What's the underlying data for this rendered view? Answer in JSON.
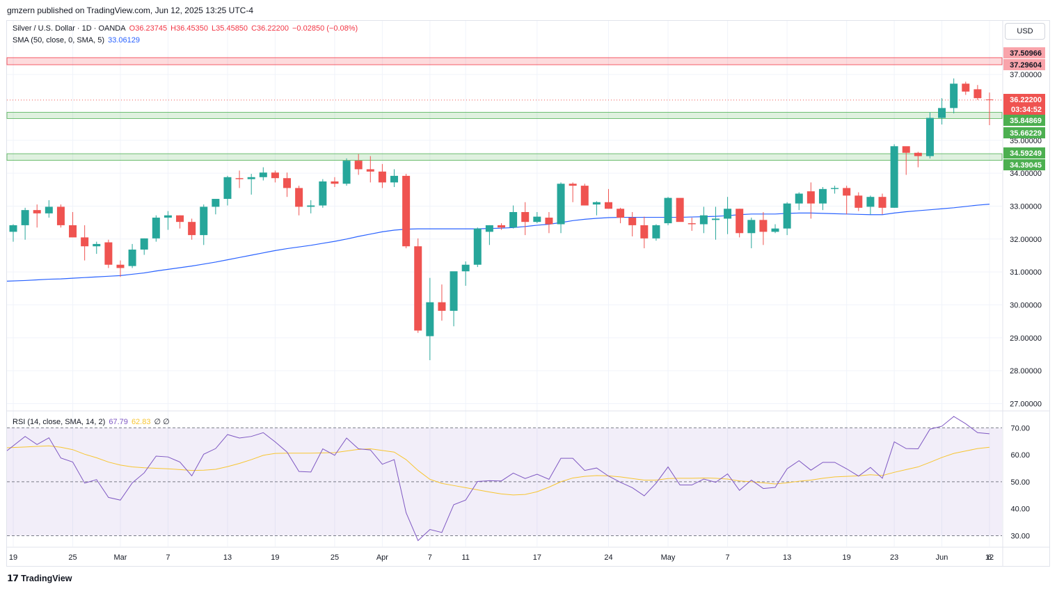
{
  "header": {
    "text": "gmzern published on TradingView.com, Jun 12, 2025 13:25 UTC-4"
  },
  "legend": {
    "symbol": "Silver / U.S. Dollar · 1D · OANDA",
    "open": "O36.23745",
    "high": "H36.45350",
    "low": "L35.45850",
    "close": "C36.22200",
    "change": "−0.02850 (−0.08%)",
    "sma_label": "SMA (50, close, 0, SMA, 5)",
    "sma_value": "33.06129",
    "rsi_label": "RSI (14, close, SMA, 14, 2)",
    "rsi_value": "67.79",
    "rsi_sma_value": "62.83",
    "rsi_extra": "∅ ∅"
  },
  "currency": "USD",
  "footer": {
    "brand": "TradingView"
  },
  "colors": {
    "up": "#26a69a",
    "down": "#ef5350",
    "sma": "#2962ff",
    "rsi": "#7e57c2",
    "rsi_sma": "#f7c531",
    "zone_red": "#f23645",
    "zone_green": "#4caf50"
  },
  "chart_data": [
    {
      "type": "candlestick",
      "title": "Silver / U.S. Dollar · 1D · OANDA",
      "ylim": [
        26.8,
        38.1
      ],
      "y_ticks": [
        "37.00000",
        "35.00000",
        "34.00000",
        "33.00000",
        "32.00000",
        "31.00000",
        "30.00000",
        "29.00000",
        "28.00000",
        "27.00000"
      ],
      "x_labels": [
        "19",
        "25",
        "Mar",
        "7",
        "13",
        "19",
        "25",
        "Apr",
        "7",
        "11",
        "17",
        "24",
        "May",
        "7",
        "13",
        "19",
        "23",
        "Jun",
        "6",
        "12"
      ],
      "price_labels": [
        {
          "text": "37.50966",
          "kind": "red"
        },
        {
          "text": "37.29604",
          "kind": "red"
        },
        {
          "text": "36.22200",
          "kind": "last"
        },
        {
          "text": "03:34:52",
          "kind": "last"
        },
        {
          "text": "35.84869",
          "kind": "green"
        },
        {
          "text": "35.66229",
          "kind": "green"
        },
        {
          "text": "34.59249",
          "kind": "green"
        },
        {
          "text": "34.39045",
          "kind": "green"
        }
      ],
      "zones": [
        {
          "color": "red",
          "from": 37.29604,
          "to": 37.50966
        },
        {
          "color": "green",
          "from": 35.66229,
          "to": 35.84869
        },
        {
          "color": "green",
          "from": 34.39045,
          "to": 34.59249
        }
      ],
      "last_price": 36.222,
      "candles": [
        [
          32.22,
          32.45,
          31.92,
          32.42
        ],
        [
          32.42,
          32.95,
          31.98,
          32.88
        ],
        [
          32.88,
          33.05,
          32.35,
          32.78
        ],
        [
          32.78,
          33.18,
          32.65,
          32.98
        ],
        [
          32.98,
          33.05,
          32.35,
          32.42
        ],
        [
          32.42,
          32.82,
          32.08,
          32.05
        ],
        [
          32.05,
          32.42,
          31.35,
          31.78
        ],
        [
          31.78,
          31.92,
          31.55,
          31.85
        ],
        [
          31.9,
          31.98,
          31.12,
          31.22
        ],
        [
          31.22,
          31.35,
          30.85,
          31.12
        ],
        [
          31.18,
          31.85,
          31.12,
          31.68
        ],
        [
          31.68,
          32.02,
          31.52,
          32.02
        ],
        [
          32.02,
          32.72,
          31.92,
          32.65
        ],
        [
          32.65,
          32.85,
          32.28,
          32.72
        ],
        [
          32.72,
          32.72,
          32.32,
          32.52
        ],
        [
          32.52,
          32.62,
          31.98,
          32.12
        ],
        [
          32.12,
          33.05,
          31.82,
          32.98
        ],
        [
          32.98,
          33.18,
          32.75,
          33.22
        ],
        [
          33.22,
          33.92,
          33.02,
          33.88
        ],
        [
          33.85,
          34.08,
          33.55,
          33.82
        ],
        [
          33.82,
          33.98,
          33.35,
          33.88
        ],
        [
          33.88,
          34.18,
          33.78,
          34.02
        ],
        [
          34.02,
          34.08,
          33.72,
          33.85
        ],
        [
          33.85,
          34.02,
          33.28,
          33.55
        ],
        [
          33.55,
          33.62,
          32.72,
          32.98
        ],
        [
          32.98,
          33.18,
          32.78,
          33.02
        ],
        [
          33.02,
          33.82,
          32.95,
          33.75
        ],
        [
          33.75,
          33.88,
          33.58,
          33.68
        ],
        [
          33.68,
          34.45,
          33.62,
          34.38
        ],
        [
          34.38,
          34.58,
          33.95,
          34.12
        ],
        [
          34.12,
          34.52,
          33.72,
          34.05
        ],
        [
          34.05,
          34.28,
          33.55,
          33.72
        ],
        [
          33.72,
          34.12,
          33.58,
          33.92
        ],
        [
          33.92,
          33.98,
          31.72,
          31.78
        ],
        [
          31.78,
          32.02,
          29.15,
          29.22
        ],
        [
          29.05,
          30.82,
          28.32,
          30.08
        ],
        [
          30.08,
          30.62,
          29.52,
          29.82
        ],
        [
          29.82,
          30.98,
          29.35,
          31.02
        ],
        [
          31.02,
          31.32,
          30.58,
          31.22
        ],
        [
          31.22,
          32.35,
          31.15,
          32.32
        ],
        [
          32.22,
          32.42,
          31.82,
          32.42
        ],
        [
          32.42,
          32.48,
          32.28,
          32.35
        ],
        [
          32.35,
          33.02,
          32.32,
          32.82
        ],
        [
          32.82,
          33.12,
          32.12,
          32.52
        ],
        [
          32.52,
          32.82,
          32.48,
          32.68
        ],
        [
          32.65,
          32.82,
          32.18,
          32.45
        ],
        [
          32.45,
          33.72,
          32.18,
          33.68
        ],
        [
          33.68,
          33.72,
          33.12,
          33.62
        ],
        [
          33.62,
          33.68,
          33.12,
          33.02
        ],
        [
          33.05,
          33.15,
          32.72,
          33.12
        ],
        [
          33.12,
          33.52,
          32.92,
          32.92
        ],
        [
          32.92,
          32.95,
          32.48,
          32.65
        ],
        [
          32.65,
          32.82,
          32.08,
          32.42
        ],
        [
          32.42,
          32.68,
          31.72,
          32.02
        ],
        [
          32.02,
          32.45,
          31.95,
          32.42
        ],
        [
          32.48,
          33.28,
          32.42,
          33.25
        ],
        [
          33.25,
          33.22,
          32.55,
          32.52
        ],
        [
          32.48,
          32.65,
          32.25,
          32.45
        ],
        [
          32.45,
          32.98,
          32.18,
          32.72
        ],
        [
          32.58,
          32.98,
          31.98,
          32.62
        ],
        [
          32.62,
          33.28,
          32.15,
          32.92
        ],
        [
          32.92,
          32.92,
          32.05,
          32.18
        ],
        [
          32.18,
          32.65,
          31.72,
          32.58
        ],
        [
          32.58,
          32.82,
          31.82,
          32.22
        ],
        [
          32.22,
          32.45,
          32.18,
          32.32
        ],
        [
          32.32,
          33.12,
          32.12,
          33.08
        ],
        [
          33.08,
          33.42,
          32.88,
          33.38
        ],
        [
          33.45,
          33.72,
          32.62,
          33.08
        ],
        [
          33.08,
          33.58,
          32.88,
          33.52
        ],
        [
          33.52,
          33.62,
          33.38,
          33.55
        ],
        [
          33.55,
          33.62,
          32.75,
          33.32
        ],
        [
          33.32,
          33.42,
          32.85,
          32.95
        ],
        [
          32.98,
          33.32,
          32.75,
          33.28
        ],
        [
          33.28,
          33.38,
          32.75,
          32.95
        ],
        [
          32.95,
          34.88,
          32.95,
          34.82
        ],
        [
          34.82,
          34.78,
          33.95,
          34.62
        ],
        [
          34.62,
          34.65,
          34.18,
          34.52
        ],
        [
          34.52,
          35.85,
          34.45,
          35.68
        ],
        [
          35.68,
          36.28,
          35.48,
          35.98
        ],
        [
          35.98,
          36.88,
          35.82,
          36.72
        ],
        [
          36.72,
          36.78,
          36.38,
          36.48
        ],
        [
          36.55,
          36.68,
          36.22,
          36.28
        ],
        [
          36.24,
          36.45,
          35.46,
          36.22
        ]
      ],
      "sma": [
        30.72,
        30.74,
        30.76,
        30.78,
        30.79,
        30.81,
        30.83,
        30.85,
        30.87,
        30.89,
        30.93,
        30.97,
        31.03,
        31.08,
        31.13,
        31.18,
        31.24,
        31.3,
        31.37,
        31.44,
        31.51,
        31.58,
        31.65,
        31.71,
        31.76,
        31.81,
        31.87,
        31.93,
        32.0,
        32.08,
        32.15,
        32.22,
        32.27,
        32.3,
        32.31,
        32.31,
        32.31,
        32.31,
        32.31,
        32.31,
        32.32,
        32.33,
        32.35,
        32.38,
        32.42,
        32.45,
        32.5,
        32.56,
        32.6,
        32.63,
        32.65,
        32.66,
        32.66,
        32.66,
        32.66,
        32.66,
        32.66,
        32.67,
        32.68,
        32.69,
        32.71,
        32.74,
        32.76,
        32.76,
        32.76,
        32.78,
        32.79,
        32.79,
        32.78,
        32.77,
        32.76,
        32.75,
        32.74,
        32.74,
        32.79,
        32.83,
        32.86,
        32.89,
        32.92,
        32.95,
        32.99,
        33.03,
        33.06
      ]
    },
    {
      "type": "line",
      "title": "RSI (14, close, SMA, 14, 2)",
      "ylim": [
        26,
        76
      ],
      "y_ticks": [
        "70.00",
        "60.00",
        "50.00",
        "40.00",
        "30.00"
      ],
      "band": [
        30,
        70
      ],
      "midline": 50,
      "rsi": [
        61.5,
        66.8,
        63.8,
        66.3,
        58.8,
        57.3,
        49.5,
        50.8,
        44.2,
        43.2,
        49.6,
        53.3,
        59.5,
        59.2,
        57.3,
        52.2,
        60.2,
        62.3,
        67.5,
        66.2,
        66.8,
        68.2,
        64.8,
        61.0,
        53.8,
        53.6,
        62.2,
        59.8,
        66.2,
        62.2,
        61.8,
        56.5,
        58.2,
        38.5,
        28.2,
        32.3,
        31.2,
        41.5,
        43.2,
        50.1,
        50.4,
        50.3,
        53.2,
        51.2,
        52.8,
        50.9,
        58.7,
        58.7,
        54.2,
        55.1,
        52.1,
        49.8,
        47.8,
        44.8,
        49.5,
        55.5,
        48.8,
        48.8,
        51.0,
        49.8,
        52.9,
        46.8,
        50.6,
        47.5,
        47.9,
        54.8,
        57.8,
        54.3,
        57.2,
        57.2,
        54.8,
        52.1,
        55.3,
        51.3,
        64.8,
        62.3,
        62.2,
        69.5,
        70.6,
        74.2,
        71.5,
        68.2,
        67.8
      ],
      "rsi_sma": [
        62.6,
        62.9,
        63.1,
        63.3,
        62.8,
        61.9,
        60.2,
        58.9,
        57.3,
        56.2,
        55.5,
        55.2,
        55.0,
        54.8,
        54.5,
        54.2,
        54.3,
        54.6,
        55.6,
        56.8,
        58.2,
        59.8,
        60.5,
        60.6,
        60.6,
        60.6,
        60.7,
        60.8,
        61.4,
        62.0,
        62.2,
        61.6,
        61.0,
        58.2,
        54.2,
        50.9,
        49.4,
        48.6,
        47.8,
        47.0,
        46.2,
        45.5,
        45.1,
        45.3,
        46.3,
        48.0,
        50.0,
        51.4,
        52.0,
        52.3,
        52.2,
        51.8,
        51.2,
        50.6,
        50.6,
        51.2,
        51.3,
        51.3,
        51.4,
        51.3,
        51.0,
        50.3,
        50.0,
        49.6,
        49.2,
        49.6,
        50.2,
        50.6,
        51.3,
        51.8,
        52.0,
        52.2,
        52.6,
        52.3,
        53.5,
        54.5,
        55.5,
        57.2,
        59.0,
        60.5,
        61.4,
        62.3,
        62.8
      ]
    }
  ]
}
